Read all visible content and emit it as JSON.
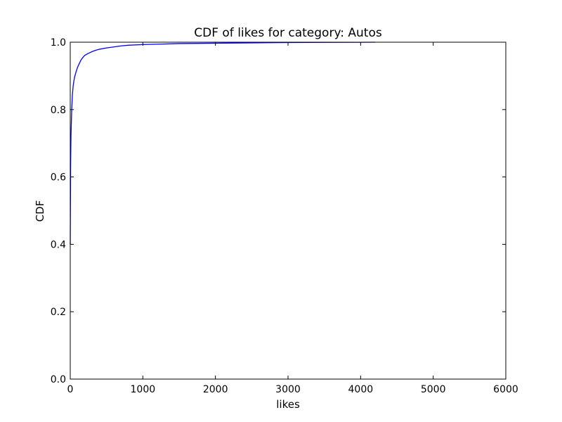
{
  "chart_data": {
    "type": "line",
    "title": "CDF of likes for category: Autos",
    "xlabel": "likes",
    "ylabel": "CDF",
    "xlim": [
      0,
      6000
    ],
    "ylim": [
      0.0,
      1.0
    ],
    "x_ticks": [
      0,
      1000,
      2000,
      3000,
      4000,
      5000,
      6000
    ],
    "x_tick_labels": [
      "0",
      "1000",
      "2000",
      "3000",
      "4000",
      "5000",
      "6000"
    ],
    "y_ticks": [
      0.0,
      0.2,
      0.4,
      0.6,
      0.8,
      1.0
    ],
    "y_tick_labels": [
      "0.0",
      "0.2",
      "0.4",
      "0.6",
      "0.8",
      "1.0"
    ],
    "grid": false,
    "legend": "none",
    "series": [
      {
        "color": "#0000ff",
        "x": [
          0,
          5,
          10,
          20,
          30,
          40,
          50,
          60,
          80,
          100,
          125,
          150,
          175,
          200,
          250,
          300,
          350,
          400,
          500,
          600,
          700,
          800,
          1000,
          1200,
          1500,
          2000,
          2500,
          3000,
          3500,
          4000,
          4200
        ],
        "y": [
          0.4,
          0.63,
          0.72,
          0.8,
          0.845,
          0.87,
          0.885,
          0.897,
          0.912,
          0.925,
          0.937,
          0.948,
          0.955,
          0.961,
          0.967,
          0.972,
          0.976,
          0.979,
          0.983,
          0.986,
          0.989,
          0.991,
          0.993,
          0.994,
          0.996,
          0.997,
          0.998,
          0.999,
          0.9995,
          0.9998,
          1.0
        ]
      }
    ]
  }
}
